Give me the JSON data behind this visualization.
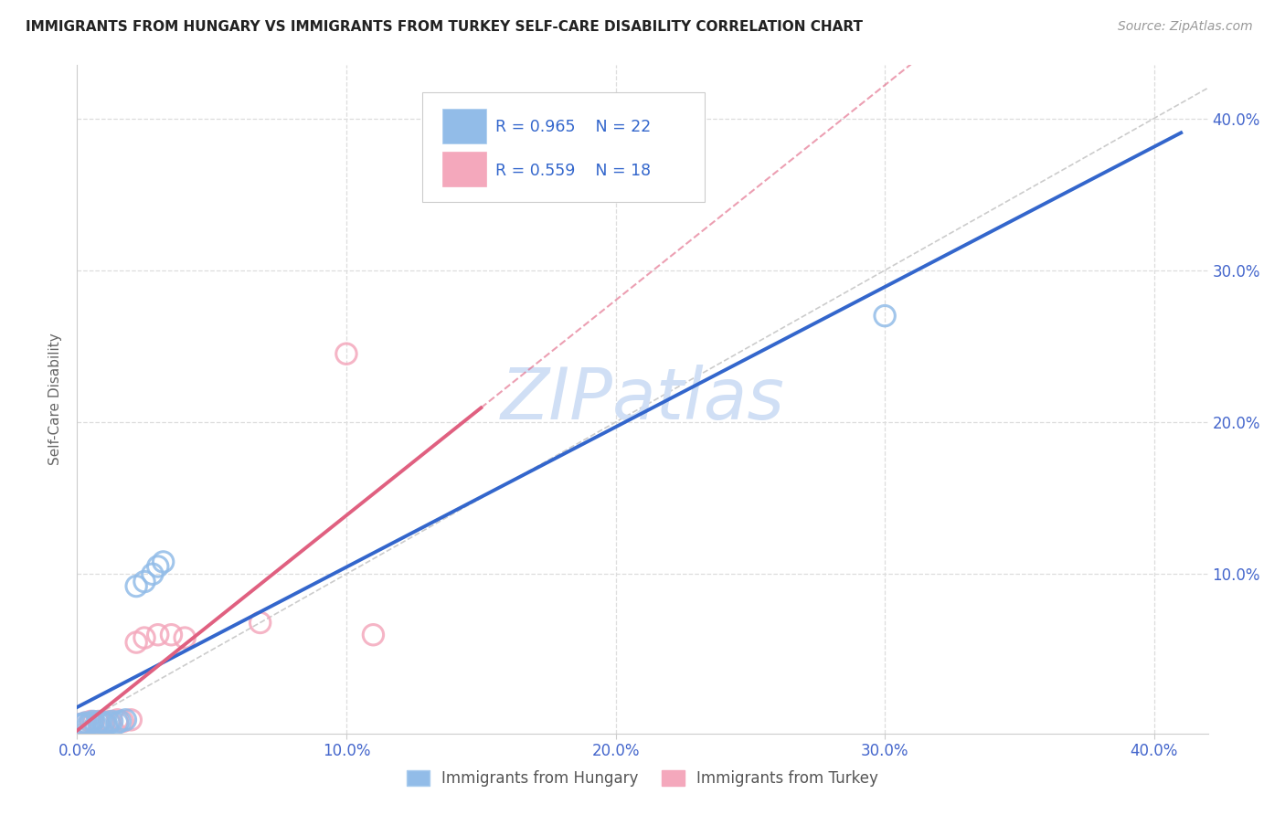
{
  "title": "IMMIGRANTS FROM HUNGARY VS IMMIGRANTS FROM TURKEY SELF-CARE DISABILITY CORRELATION CHART",
  "source": "Source: ZipAtlas.com",
  "ylabel": "Self-Care Disability",
  "xlim": [
    0.0,
    0.42
  ],
  "ylim": [
    -0.005,
    0.435
  ],
  "xticks": [
    0.0,
    0.1,
    0.2,
    0.3,
    0.4
  ],
  "yticks": [
    0.0,
    0.1,
    0.2,
    0.3,
    0.4
  ],
  "xtick_labels": [
    "0.0%",
    "10.0%",
    "20.0%",
    "30.0%",
    "40.0%"
  ],
  "ytick_labels_right": [
    "",
    "10.0%",
    "20.0%",
    "30.0%",
    "40.0%"
  ],
  "hungary_color": "#92bce8",
  "turkey_color": "#f4a8bc",
  "hungary_line_color": "#3366cc",
  "turkey_line_color": "#e06080",
  "hungary_R": 0.965,
  "hungary_N": 22,
  "turkey_R": 0.559,
  "turkey_N": 18,
  "hungary_points": [
    [
      0.001,
      0.001
    ],
    [
      0.002,
      0.001
    ],
    [
      0.003,
      0.002
    ],
    [
      0.004,
      0.001
    ],
    [
      0.005,
      0.002
    ],
    [
      0.006,
      0.003
    ],
    [
      0.007,
      0.001
    ],
    [
      0.008,
      0.002
    ],
    [
      0.009,
      0.003
    ],
    [
      0.01,
      0.002
    ],
    [
      0.011,
      0.001
    ],
    [
      0.012,
      0.002
    ],
    [
      0.013,
      0.003
    ],
    [
      0.015,
      0.002
    ],
    [
      0.016,
      0.003
    ],
    [
      0.018,
      0.004
    ],
    [
      0.022,
      0.092
    ],
    [
      0.025,
      0.095
    ],
    [
      0.028,
      0.1
    ],
    [
      0.03,
      0.105
    ],
    [
      0.032,
      0.108
    ],
    [
      0.3,
      0.27
    ]
  ],
  "turkey_points": [
    [
      0.001,
      0.001
    ],
    [
      0.003,
      0.002
    ],
    [
      0.005,
      0.003
    ],
    [
      0.006,
      0.002
    ],
    [
      0.008,
      0.003
    ],
    [
      0.01,
      0.002
    ],
    [
      0.012,
      0.003
    ],
    [
      0.015,
      0.004
    ],
    [
      0.017,
      0.003
    ],
    [
      0.02,
      0.004
    ],
    [
      0.022,
      0.055
    ],
    [
      0.025,
      0.058
    ],
    [
      0.03,
      0.06
    ],
    [
      0.035,
      0.06
    ],
    [
      0.04,
      0.058
    ],
    [
      0.068,
      0.068
    ],
    [
      0.1,
      0.245
    ],
    [
      0.11,
      0.06
    ]
  ],
  "background_color": "#ffffff",
  "grid_color": "#dddddd",
  "axis_tick_color": "#4466cc",
  "watermark_text": "ZIPatlas",
  "watermark_color": "#d0dff5",
  "legend_text_color": "#3366cc"
}
